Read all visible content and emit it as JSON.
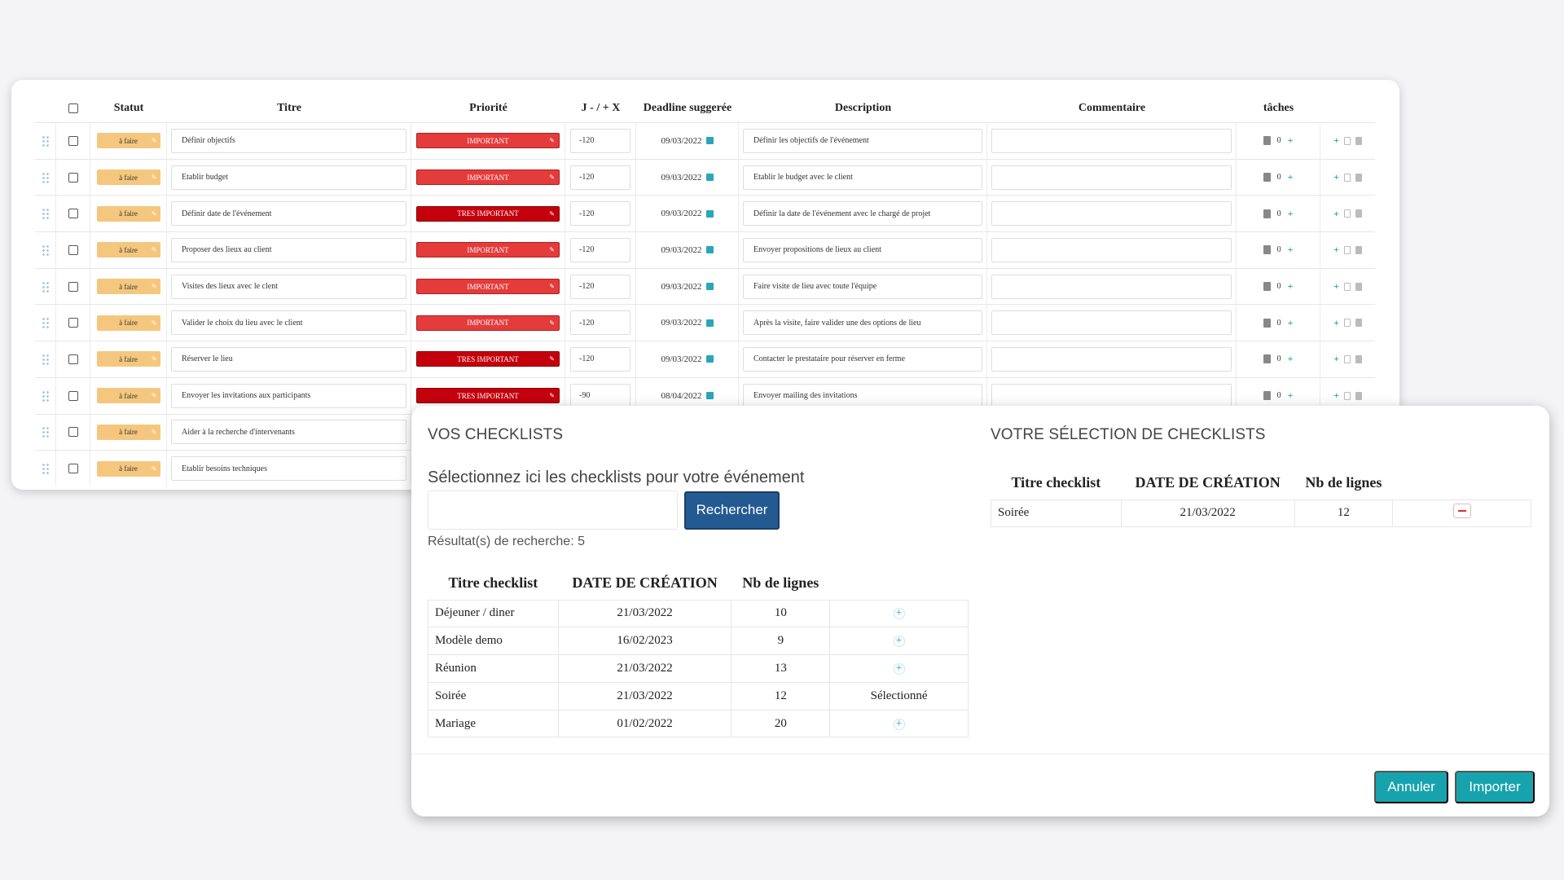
{
  "task_table": {
    "columns": [
      "Statut",
      "Titre",
      "Priorité",
      "J - / + X",
      "Deadline suggerée",
      "Description",
      "Commentaire",
      "tâches"
    ],
    "rows": [
      {
        "statut": "à faire",
        "titre": "Définir objectifs",
        "priorite": "IMPORTANT",
        "prio_level": "imp",
        "jx": "-120",
        "deadline": "09/03/2022",
        "description": "Définir les objectifs de l'événement",
        "commentaire": "",
        "taches": "0"
      },
      {
        "statut": "à faire",
        "titre": "Etablir budget",
        "priorite": "IMPORTANT",
        "prio_level": "imp",
        "jx": "-120",
        "deadline": "09/03/2022",
        "description": "Etablir le budget avec le client",
        "commentaire": "",
        "taches": "0"
      },
      {
        "statut": "à faire",
        "titre": "Définir date de l'événement",
        "priorite": "TRES IMPORTANT",
        "prio_level": "tres",
        "jx": "-120",
        "deadline": "09/03/2022",
        "description": "Définir la date de l'événement avec le chargé de projet",
        "commentaire": "",
        "taches": "0"
      },
      {
        "statut": "à faire",
        "titre": "Proposer des lieux au client",
        "priorite": "IMPORTANT",
        "prio_level": "imp",
        "jx": "-120",
        "deadline": "09/03/2022",
        "description": "Envoyer propositions de lieux au client",
        "commentaire": "",
        "taches": "0"
      },
      {
        "statut": "à faire",
        "titre": "Visites des lieux avec le clent",
        "priorite": "IMPORTANT",
        "prio_level": "imp",
        "jx": "-120",
        "deadline": "09/03/2022",
        "description": "Faire visite de lieu avec toute l'équipe",
        "commentaire": "",
        "taches": "0"
      },
      {
        "statut": "à faire",
        "titre": "Valider le choix du lieu avec le client",
        "priorite": "IMPORTANT",
        "prio_level": "imp",
        "jx": "-120",
        "deadline": "09/03/2022",
        "description": "Après la visite, faire valider une des options de lieu",
        "commentaire": "",
        "taches": "0"
      },
      {
        "statut": "à faire",
        "titre": "Réserver le lieu",
        "priorite": "TRES IMPORTANT",
        "prio_level": "tres",
        "jx": "-120",
        "deadline": "09/03/2022",
        "description": "Contacter le prestataire pour réserver en ferme",
        "commentaire": "",
        "taches": "0"
      },
      {
        "statut": "à faire",
        "titre": "Envoyer les invitations aux participants",
        "priorite": "TRES IMPORTANT",
        "prio_level": "tres",
        "jx": "-90",
        "deadline": "08/04/2022",
        "description": "Envoyer mailing des invitations",
        "commentaire": "",
        "taches": "0"
      },
      {
        "statut": "à faire",
        "titre": "Aider à la recherche d'intervenants",
        "priorite": "",
        "prio_level": "",
        "jx": "",
        "deadline": "",
        "description": "",
        "commentaire": "",
        "taches": ""
      },
      {
        "statut": "à faire",
        "titre": "Etablir besoins techniques",
        "priorite": "",
        "prio_level": "",
        "jx": "",
        "deadline": "",
        "description": "",
        "commentaire": "",
        "taches": ""
      }
    ]
  },
  "modal": {
    "left_title": "VOS CHECKLISTS",
    "subtitle": "Sélectionnez ici les checklists pour votre événement",
    "search_value": "",
    "search_button": "Rechercher",
    "results_label": "Résultat(s) de recherche: 5",
    "columns": [
      "Titre checklist",
      "DATE DE CRÉATION",
      "Nb de lignes"
    ],
    "checklists": [
      {
        "titre": "Déjeuner / diner",
        "date": "21/03/2022",
        "lignes": "10",
        "action": "+"
      },
      {
        "titre": "Modèle demo",
        "date": "16/02/2023",
        "lignes": "9",
        "action": "+"
      },
      {
        "titre": "Réunion",
        "date": "21/03/2022",
        "lignes": "13",
        "action": "+"
      },
      {
        "titre": "Soirée",
        "date": "21/03/2022",
        "lignes": "12",
        "action": "Sélectionné"
      },
      {
        "titre": "Mariage",
        "date": "01/02/2022",
        "lignes": "20",
        "action": "+"
      }
    ],
    "right_title": "VOTRE SÉLECTION DE CHECKLISTS",
    "selection": [
      {
        "titre": "Soirée",
        "date": "21/03/2022",
        "lignes": "12"
      }
    ],
    "cancel_button": "Annuler",
    "import_button": "Importer"
  },
  "colors": {
    "statut_badge": "#f5c77e",
    "important": "#e43b3b",
    "tres_important": "#c4000c",
    "accent_teal": "#17a3ad",
    "search_button": "#245a92",
    "remove_red": "#d9302b"
  }
}
